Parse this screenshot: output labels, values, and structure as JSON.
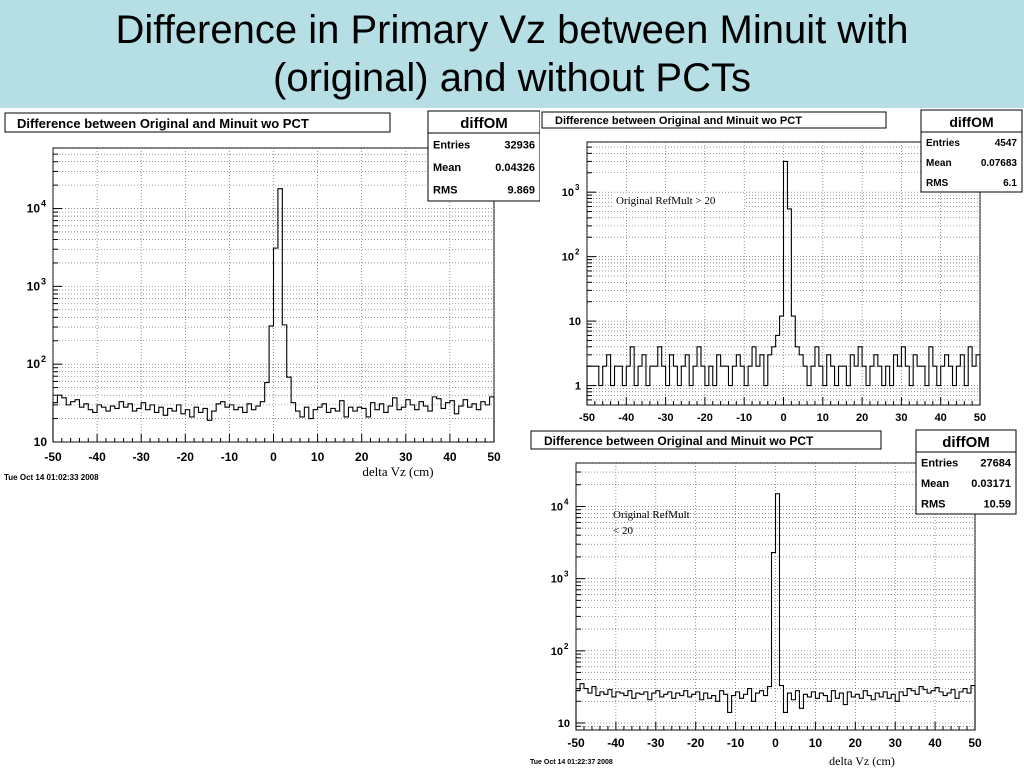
{
  "slide": {
    "title_line1": "Difference in Primary Vz between Minuit with",
    "title_line2": "(original) and without PCTs"
  },
  "chart_data": [
    {
      "type": "bar",
      "title": "Difference between Original and Minuit wo PCT",
      "xlabel": "delta Vz (cm)",
      "ylabel": "",
      "log_y": true,
      "grid": true,
      "xlim": [
        -50,
        50
      ],
      "ylim": [
        10,
        60000
      ],
      "x_ticks": [
        "-50",
        "-40",
        "-30",
        "-20",
        "-10",
        "0",
        "10",
        "20",
        "30",
        "40",
        "50"
      ],
      "y_ticks": [
        {
          "value": 10,
          "base": "10",
          "exp": ""
        },
        {
          "value": 100,
          "base": "10",
          "exp": "2"
        },
        {
          "value": 1000,
          "base": "10",
          "exp": "3"
        },
        {
          "value": 10000,
          "base": "10",
          "exp": "4"
        }
      ],
      "bin_width": 1,
      "x": [
        -50,
        -49,
        -48,
        -47,
        -46,
        -45,
        -44,
        -43,
        -42,
        -41,
        -40,
        -39,
        -38,
        -37,
        -36,
        -35,
        -34,
        -33,
        -32,
        -31,
        -30,
        -29,
        -28,
        -27,
        -26,
        -25,
        -24,
        -23,
        -22,
        -21,
        -20,
        -19,
        -18,
        -17,
        -16,
        -15,
        -14,
        -13,
        -12,
        -11,
        -10,
        -9,
        -8,
        -7,
        -6,
        -5,
        -4,
        -3,
        -2,
        -1,
        0,
        1,
        2,
        3,
        4,
        5,
        6,
        7,
        8,
        9,
        10,
        11,
        12,
        13,
        14,
        15,
        16,
        17,
        18,
        19,
        20,
        21,
        22,
        23,
        24,
        25,
        26,
        27,
        28,
        29,
        30,
        31,
        32,
        33,
        34,
        35,
        36,
        37,
        38,
        39,
        40,
        41,
        42,
        43,
        44,
        45,
        46,
        47,
        48,
        49
      ],
      "values": [
        32,
        40,
        37,
        30,
        33,
        35,
        28,
        31,
        26,
        24,
        30,
        28,
        25,
        29,
        27,
        33,
        28,
        31,
        25,
        27,
        32,
        26,
        30,
        24,
        28,
        22,
        27,
        25,
        30,
        23,
        26,
        21,
        28,
        24,
        27,
        19,
        25,
        31,
        33,
        28,
        30,
        26,
        28,
        24,
        31,
        26,
        29,
        33,
        58,
        310,
        3100,
        18000,
        320,
        68,
        32,
        25,
        21,
        28,
        20,
        26,
        28,
        31,
        24,
        27,
        25,
        34,
        21,
        28,
        25,
        28,
        27,
        21,
        32,
        26,
        31,
        24,
        29,
        37,
        26,
        28,
        35,
        30,
        26,
        33,
        29,
        25,
        38,
        36,
        27,
        32,
        34,
        23,
        29,
        35,
        28,
        31,
        26,
        33,
        30,
        38
      ],
      "stats_box": {
        "title": "diffOM",
        "entries_label": "Entries",
        "entries": "32936",
        "mean_label": "Mean",
        "mean": "0.04326",
        "rms_label": "RMS",
        "rms": "9.869"
      },
      "timestamp": "Tue Oct 14 01:02:33 2008"
    },
    {
      "type": "bar",
      "title": "Difference between Original and Minuit wo PCT",
      "xlabel": "",
      "ylabel": "",
      "log_y": true,
      "grid": true,
      "xlim": [
        -50,
        50
      ],
      "ylim": [
        0.5,
        6000
      ],
      "x_ticks": [
        "-50",
        "-40",
        "-30",
        "-20",
        "-10",
        "0",
        "10",
        "20",
        "30",
        "40",
        "50"
      ],
      "y_ticks": [
        {
          "value": 1,
          "base": "1",
          "exp": ""
        },
        {
          "value": 10,
          "base": "10",
          "exp": ""
        },
        {
          "value": 100,
          "base": "10",
          "exp": "2"
        },
        {
          "value": 1000,
          "base": "10",
          "exp": "3"
        }
      ],
      "annotation": "Original RefMult > 20",
      "bin_width": 1,
      "x": [
        -50,
        -49,
        -48,
        -47,
        -46,
        -45,
        -44,
        -43,
        -42,
        -41,
        -40,
        -39,
        -38,
        -37,
        -36,
        -35,
        -34,
        -33,
        -32,
        -31,
        -30,
        -29,
        -28,
        -27,
        -26,
        -25,
        -24,
        -23,
        -22,
        -21,
        -20,
        -19,
        -18,
        -17,
        -16,
        -15,
        -14,
        -13,
        -12,
        -11,
        -10,
        -9,
        -8,
        -7,
        -6,
        -5,
        -4,
        -3,
        -2,
        -1,
        0,
        1,
        2,
        3,
        4,
        5,
        6,
        7,
        8,
        9,
        10,
        11,
        12,
        13,
        14,
        15,
        16,
        17,
        18,
        19,
        20,
        21,
        22,
        23,
        24,
        25,
        26,
        27,
        28,
        29,
        30,
        31,
        32,
        33,
        34,
        35,
        36,
        37,
        38,
        39,
        40,
        41,
        42,
        43,
        44,
        45,
        46,
        47,
        48,
        49
      ],
      "values": [
        2,
        2,
        2,
        1,
        2,
        3,
        1,
        2,
        2,
        1,
        2,
        4,
        1,
        2,
        3,
        1,
        2,
        2,
        4,
        2,
        1,
        3,
        2,
        1,
        2,
        3,
        1,
        2,
        4,
        2,
        1,
        2,
        1,
        3,
        2,
        2,
        1,
        2,
        3,
        2,
        1,
        2,
        4,
        2,
        3,
        1,
        3,
        4,
        6,
        12,
        3000,
        550,
        12,
        4,
        3,
        2,
        1,
        2,
        4,
        2,
        1,
        3,
        2,
        1,
        2,
        2,
        1,
        3,
        2,
        4,
        2,
        1,
        2,
        3,
        2,
        1,
        2,
        1,
        3,
        2,
        4,
        2,
        1,
        3,
        2,
        2,
        1,
        4,
        2,
        1,
        2,
        3,
        2,
        1,
        2,
        3,
        1,
        4,
        2,
        3
      ],
      "stats_box": {
        "title": "diffOM",
        "entries_label": "Entries",
        "entries": "4547",
        "mean_label": "Mean",
        "mean": "0.07683",
        "rms_label": "RMS",
        "rms": "6.1"
      }
    },
    {
      "type": "bar",
      "title": "Difference between Original and Minuit wo PCT",
      "xlabel": "delta Vz (cm)",
      "ylabel": "",
      "log_y": true,
      "grid": true,
      "xlim": [
        -50,
        50
      ],
      "ylim": [
        8,
        40000
      ],
      "x_ticks": [
        "-50",
        "-40",
        "-30",
        "-20",
        "-10",
        "0",
        "10",
        "20",
        "30",
        "40",
        "50"
      ],
      "y_ticks": [
        {
          "value": 10,
          "base": "10",
          "exp": ""
        },
        {
          "value": 100,
          "base": "10",
          "exp": "2"
        },
        {
          "value": 1000,
          "base": "10",
          "exp": "3"
        },
        {
          "value": 10000,
          "base": "10",
          "exp": "4"
        }
      ],
      "annotation_line1": "Original RefMult",
      "annotation_line2": "< 20",
      "bin_width": 1,
      "x": [
        -50,
        -49,
        -48,
        -47,
        -46,
        -45,
        -44,
        -43,
        -42,
        -41,
        -40,
        -39,
        -38,
        -37,
        -36,
        -35,
        -34,
        -33,
        -32,
        -31,
        -30,
        -29,
        -28,
        -27,
        -26,
        -25,
        -24,
        -23,
        -22,
        -21,
        -20,
        -19,
        -18,
        -17,
        -16,
        -15,
        -14,
        -13,
        -12,
        -11,
        -10,
        -9,
        -8,
        -7,
        -6,
        -5,
        -4,
        -3,
        -2,
        -1,
        0,
        1,
        2,
        3,
        4,
        5,
        6,
        7,
        8,
        9,
        10,
        11,
        12,
        13,
        14,
        15,
        16,
        17,
        18,
        19,
        20,
        21,
        22,
        23,
        24,
        25,
        26,
        27,
        28,
        29,
        30,
        31,
        32,
        33,
        34,
        35,
        36,
        37,
        38,
        39,
        40,
        41,
        42,
        43,
        44,
        45,
        46,
        47,
        48,
        49
      ],
      "values": [
        28,
        35,
        30,
        26,
        32,
        24,
        27,
        25,
        29,
        23,
        27,
        26,
        24,
        28,
        22,
        26,
        25,
        27,
        21,
        26,
        28,
        23,
        25,
        27,
        22,
        26,
        24,
        28,
        23,
        25,
        27,
        21,
        26,
        22,
        24,
        20,
        28,
        25,
        14,
        24,
        27,
        22,
        25,
        30,
        20,
        26,
        28,
        24,
        32,
        2300,
        15000,
        33,
        14,
        26,
        21,
        28,
        16,
        25,
        23,
        27,
        22,
        26,
        24,
        20,
        28,
        22,
        26,
        18,
        27,
        23,
        25,
        22,
        28,
        24,
        21,
        26,
        23,
        27,
        22,
        25,
        20,
        27,
        24,
        30,
        28,
        25,
        32,
        29,
        26,
        28,
        31,
        27,
        24,
        26,
        29,
        22,
        27,
        30,
        26,
        33
      ],
      "stats_box": {
        "title": "diffOM",
        "entries_label": "Entries",
        "entries": "27684",
        "mean_label": "Mean",
        "mean": "0.03171",
        "rms_label": "RMS",
        "rms": "10.59"
      },
      "timestamp": "Tue Oct 14 01:22:37 2008"
    }
  ]
}
